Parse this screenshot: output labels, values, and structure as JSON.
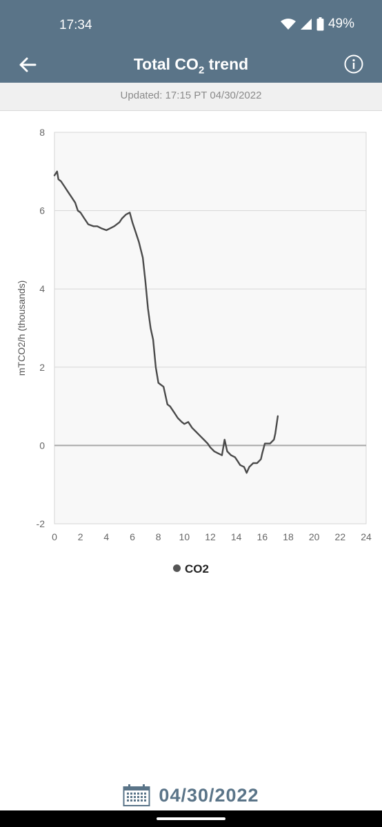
{
  "status": {
    "time": "17:34",
    "battery": "49%"
  },
  "header": {
    "title_main": "Total CO",
    "title_sub": "2",
    "title_tail": " trend"
  },
  "updated": "Updated: 17:15 PT 04/30/2022",
  "date_selector": {
    "date": "04/30/2022"
  },
  "colors": {
    "header": "#5a7488",
    "line": "#4a4a4a",
    "plot_bg": "#f8f8f8"
  },
  "icons": {
    "back": "arrow-left-icon",
    "info": "info-icon",
    "calendar": "calendar-icon"
  },
  "chart_data": {
    "type": "line",
    "title": "",
    "xlabel": "",
    "ylabel": "mTCO2/h (thousands)",
    "xlim": [
      0,
      24
    ],
    "ylim": [
      -2,
      8
    ],
    "xticks": [
      0,
      2,
      4,
      6,
      8,
      10,
      12,
      14,
      16,
      18,
      20,
      22,
      24
    ],
    "yticks": [
      -2,
      0,
      2,
      4,
      6,
      8
    ],
    "grid": true,
    "legend_position": "bottom",
    "series": [
      {
        "name": "CO2",
        "x": [
          0.0,
          0.2,
          0.3,
          0.5,
          0.8,
          1.0,
          1.3,
          1.6,
          1.8,
          2.0,
          2.3,
          2.6,
          3.0,
          3.3,
          3.6,
          4.0,
          4.3,
          4.6,
          5.0,
          5.2,
          5.5,
          5.8,
          6.0,
          6.2,
          6.5,
          6.8,
          7.0,
          7.2,
          7.4,
          7.6,
          7.8,
          8.0,
          8.2,
          8.4,
          8.7,
          8.9,
          9.2,
          9.5,
          9.8,
          10.0,
          10.3,
          10.6,
          10.9,
          11.2,
          11.5,
          11.8,
          12.0,
          12.3,
          12.6,
          12.9,
          13.1,
          13.3,
          13.6,
          13.9,
          14.1,
          14.3,
          14.6,
          14.8,
          15.0,
          15.3,
          15.6,
          15.9,
          16.0,
          16.2,
          16.4,
          16.6,
          16.9,
          17.0,
          17.2
        ],
        "values": [
          6.9,
          7.0,
          6.8,
          6.75,
          6.6,
          6.5,
          6.35,
          6.2,
          6.0,
          5.95,
          5.8,
          5.65,
          5.6,
          5.6,
          5.55,
          5.5,
          5.55,
          5.6,
          5.7,
          5.8,
          5.9,
          5.95,
          5.7,
          5.5,
          5.2,
          4.8,
          4.2,
          3.5,
          3.0,
          2.7,
          2.0,
          1.6,
          1.55,
          1.5,
          1.05,
          1.0,
          0.85,
          0.7,
          0.6,
          0.55,
          0.6,
          0.45,
          0.35,
          0.25,
          0.15,
          0.05,
          -0.05,
          -0.15,
          -0.2,
          -0.25,
          0.15,
          -0.15,
          -0.25,
          -0.3,
          -0.4,
          -0.5,
          -0.55,
          -0.7,
          -0.55,
          -0.45,
          -0.45,
          -0.35,
          -0.2,
          0.05,
          0.05,
          0.05,
          0.15,
          0.3,
          0.75
        ]
      }
    ]
  }
}
